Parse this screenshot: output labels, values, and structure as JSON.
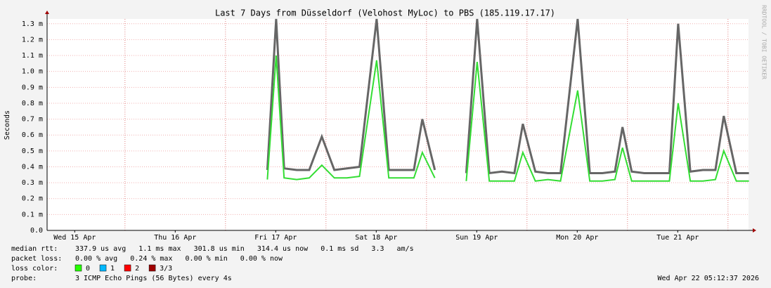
{
  "chart_data": {
    "type": "smokeping",
    "title": "Last 7 Days from Düsseldorf (Velohost MyLoc) to PBS (185.119.17.17)",
    "y_label": "Seconds",
    "side_text": "RRDTOOL / TOBI OETIKER",
    "xlim": [
      5.4,
      172.9
    ],
    "xticks": [
      {
        "value": 12,
        "label": "Wed 15 Apr"
      },
      {
        "value": 36,
        "label": "Thu 16 Apr"
      },
      {
        "value": 60,
        "label": "Fri 17 Apr"
      },
      {
        "value": 84,
        "label": "Sat 18 Apr"
      },
      {
        "value": 108,
        "label": "Sun 19 Apr"
      },
      {
        "value": 132,
        "label": "Mon 20 Apr"
      },
      {
        "value": 156,
        "label": "Tue 21 Apr"
      }
    ],
    "ylim": [
      0,
      1.33
    ],
    "yticks": [
      {
        "value": 0,
        "label": "0.0"
      },
      {
        "value": 0.1,
        "label": "0.1 m"
      },
      {
        "value": 0.2,
        "label": "0.2 m"
      },
      {
        "value": 0.3,
        "label": "0.3 m"
      },
      {
        "value": 0.4,
        "label": "0.4 m"
      },
      {
        "value": 0.5,
        "label": "0.5 m"
      },
      {
        "value": 0.6,
        "label": "0.6 m"
      },
      {
        "value": 0.7,
        "label": "0.7 m"
      },
      {
        "value": 0.8,
        "label": "0.8 m"
      },
      {
        "value": 0.9,
        "label": "0.9 m"
      },
      {
        "value": 1.0,
        "label": "1.0 m"
      },
      {
        "value": 1.1,
        "label": "1.1 m"
      },
      {
        "value": 1.2,
        "label": "1.2 m"
      },
      {
        "value": 1.3,
        "label": "1.3 m"
      }
    ],
    "grid": true,
    "x": [
      58,
      60.1,
      62,
      65,
      68,
      71,
      74,
      77,
      80,
      84.1,
      87,
      90,
      93,
      95,
      98,
      100,
      105.5,
      108.1,
      111,
      114,
      117,
      119,
      122,
      125,
      128,
      132.1,
      135,
      138,
      141,
      142.8,
      145,
      148,
      151,
      154,
      156.1,
      159,
      162,
      165,
      167,
      170,
      173
    ],
    "series": [
      {
        "color": "#666666",
        "values": [
          0.38,
          1.33,
          0.39,
          0.38,
          0.38,
          0.59,
          0.38,
          0.39,
          0.4,
          1.33,
          0.38,
          0.38,
          0.38,
          0.7,
          0.38,
          null,
          0.36,
          1.33,
          0.36,
          0.37,
          0.36,
          0.67,
          0.37,
          0.36,
          0.36,
          1.33,
          0.36,
          0.36,
          0.37,
          0.65,
          0.37,
          0.36,
          0.36,
          0.36,
          1.3,
          0.37,
          0.38,
          0.38,
          0.72,
          0.36,
          0.36
        ]
      },
      {
        "color": "#33dd33",
        "values": [
          0.32,
          1.1,
          0.33,
          0.32,
          0.33,
          0.41,
          0.33,
          0.33,
          0.34,
          1.07,
          0.33,
          0.33,
          0.33,
          0.49,
          0.33,
          null,
          0.31,
          1.06,
          0.31,
          0.31,
          0.31,
          0.49,
          0.31,
          0.32,
          0.31,
          0.88,
          0.31,
          0.31,
          0.32,
          0.52,
          0.31,
          0.31,
          0.31,
          0.31,
          0.8,
          0.31,
          0.31,
          0.32,
          0.5,
          0.31,
          0.31
        ]
      }
    ]
  },
  "footer": {
    "rows": [
      {
        "label": "median rtt:",
        "text": "337.9 us avg   1.1 ms max   301.8 us min   314.4 us now   0.1 ms sd   3.3   am/s"
      },
      {
        "label": "packet loss:",
        "text": "0.00 % avg   0.24 % max   0.00 % min   0.00 % now"
      }
    ],
    "loss_label": "loss color:",
    "loss_items": [
      {
        "label": "0",
        "color": "#26ff00"
      },
      {
        "label": "1",
        "color": "#00b8ff"
      },
      {
        "label": "2",
        "color": "#ff0000"
      },
      {
        "label": "3/3",
        "color": "#a00000"
      }
    ],
    "probe_label": "probe:",
    "probe_text": "3 ICMP Echo Pings (56 Bytes) every 4s",
    "timestamp": "Wed Apr 22 05:12:37 2026"
  }
}
